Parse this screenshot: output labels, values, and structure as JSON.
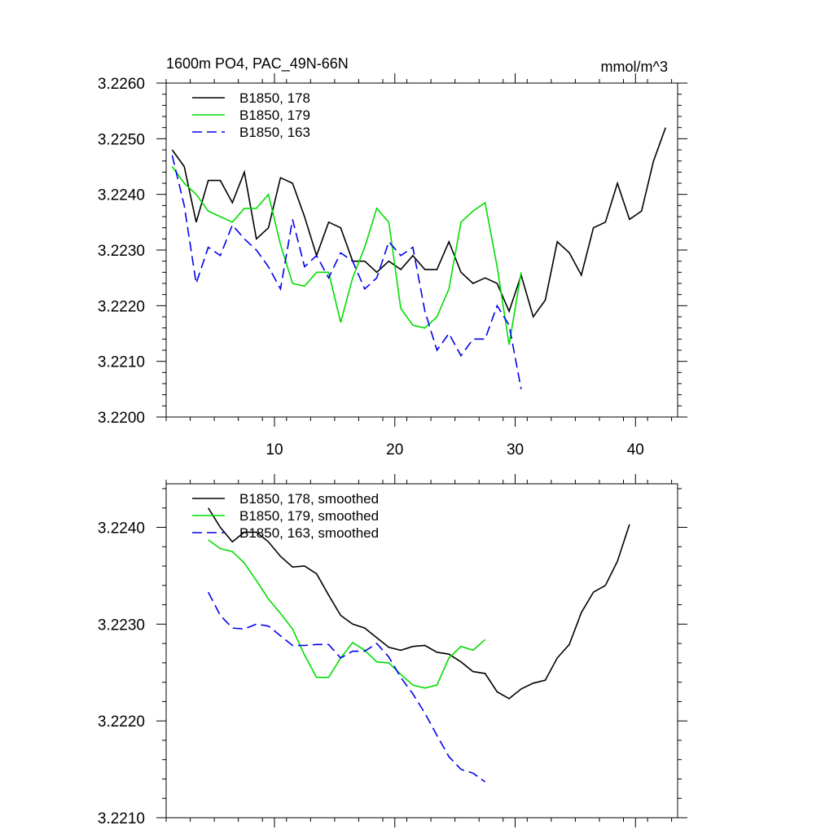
{
  "chart_data": [
    {
      "type": "line",
      "title": "1600m PO4, PAC_49N-66N",
      "units": "mmol/m^3",
      "xlim": [
        1,
        43.5
      ],
      "ylim": [
        3.22,
        3.226
      ],
      "x_ticks": [
        10,
        20,
        30,
        40
      ],
      "x_tick_labels": [
        "10",
        "20",
        "30",
        "40"
      ],
      "y_ticks": [
        3.22,
        3.221,
        3.222,
        3.223,
        3.224,
        3.225,
        3.226
      ],
      "y_tick_labels": [
        "3.2200",
        "3.2210",
        "3.2220",
        "3.2230",
        "3.2240",
        "3.2250",
        "3.2260"
      ],
      "legend_position": "top-left",
      "series": [
        {
          "name": "B1850, 178",
          "color": "#000000",
          "dash": "solid",
          "x": [
            1.5,
            2.5,
            3.5,
            4.5,
            5.5,
            6.5,
            7.5,
            8.5,
            9.5,
            10.5,
            11.5,
            12.5,
            13.5,
            14.5,
            15.5,
            16.5,
            17.5,
            18.5,
            19.5,
            20.5,
            21.5,
            22.5,
            23.5,
            24.5,
            25.5,
            26.5,
            27.5,
            28.5,
            29.5,
            30.5,
            31.5,
            32.5,
            33.5,
            34.5,
            35.5,
            36.5,
            37.5,
            38.5,
            39.5,
            40.5,
            41.5,
            42.5
          ],
          "values": [
            3.2248,
            3.2245,
            3.2235,
            3.22425,
            3.22425,
            3.22385,
            3.2244,
            3.2232,
            3.2234,
            3.2243,
            3.2242,
            3.2236,
            3.2229,
            3.2235,
            3.2234,
            3.2228,
            3.2228,
            3.2226,
            3.2228,
            3.22265,
            3.2229,
            3.22265,
            3.22265,
            3.22315,
            3.2226,
            3.2224,
            3.2225,
            3.2224,
            3.2219,
            3.22255,
            3.2218,
            3.2221,
            3.22315,
            3.22295,
            3.22255,
            3.2234,
            3.2235,
            3.2242,
            3.22355,
            3.2237,
            3.2246,
            3.2252
          ]
        },
        {
          "name": "B1850, 179",
          "color": "#00dd00",
          "dash": "solid",
          "x": [
            1.5,
            2.5,
            3.5,
            4.5,
            5.5,
            6.5,
            7.5,
            8.5,
            9.5,
            10.5,
            11.5,
            12.5,
            13.5,
            14.5,
            15.5,
            16.5,
            17.5,
            18.5,
            19.5,
            20.5,
            21.5,
            22.5,
            23.5,
            24.5,
            25.5,
            26.5,
            27.5,
            28.5,
            29.5,
            30.5
          ],
          "values": [
            3.2245,
            3.2242,
            3.224,
            3.2237,
            3.2236,
            3.2235,
            3.22375,
            3.22375,
            3.224,
            3.2231,
            3.2224,
            3.22235,
            3.2226,
            3.2226,
            3.2217,
            3.2225,
            3.22305,
            3.22375,
            3.2235,
            3.22195,
            3.22165,
            3.2216,
            3.2218,
            3.2223,
            3.2235,
            3.2237,
            3.22385,
            3.2227,
            3.2213,
            3.2226
          ]
        },
        {
          "name": "B1850, 163",
          "color": "#0000ee",
          "dash": "dashed",
          "x": [
            1.5,
            2.5,
            3.5,
            4.5,
            5.5,
            6.5,
            7.5,
            8.5,
            9.5,
            10.5,
            11.5,
            12.5,
            13.5,
            14.5,
            15.5,
            16.5,
            17.5,
            18.5,
            19.5,
            20.5,
            21.5,
            22.5,
            23.5,
            24.5,
            25.5,
            26.5,
            27.5,
            28.5,
            29.5,
            30.5
          ],
          "values": [
            3.2247,
            3.2238,
            3.2224,
            3.22305,
            3.2229,
            3.22345,
            3.2232,
            3.223,
            3.2227,
            3.2223,
            3.22355,
            3.2227,
            3.2229,
            3.2225,
            3.22295,
            3.2228,
            3.2223,
            3.2225,
            3.22315,
            3.2229,
            3.22305,
            3.2219,
            3.2212,
            3.2215,
            3.2211,
            3.2214,
            3.2214,
            3.222,
            3.22165,
            3.2205
          ]
        }
      ]
    },
    {
      "type": "line",
      "title": "",
      "xlim": [
        1,
        43.5
      ],
      "ylim": [
        3.221,
        3.22445
      ],
      "x_ticks": [
        10,
        20,
        30,
        40
      ],
      "y_ticks": [
        3.221,
        3.222,
        3.223,
        3.224
      ],
      "y_tick_labels": [
        "3.2210",
        "3.2220",
        "3.2230",
        "3.2240"
      ],
      "legend_position": "top-left",
      "series": [
        {
          "name": "B1850, 178, smoothed",
          "color": "#000000",
          "dash": "solid",
          "x": [
            4.5,
            5.5,
            6.5,
            7.5,
            8.5,
            9.5,
            10.5,
            11.5,
            12.5,
            13.5,
            14.5,
            15.5,
            16.5,
            17.5,
            18.5,
            19.5,
            20.5,
            21.5,
            22.5,
            23.5,
            24.5,
            25.5,
            26.5,
            27.5,
            28.5,
            29.5,
            30.5,
            31.5,
            32.5,
            33.5,
            34.5,
            35.5,
            36.5,
            37.5,
            38.5,
            39.5
          ],
          "values": [
            3.2242,
            3.224,
            3.22385,
            3.22395,
            3.22395,
            3.22385,
            3.2237,
            3.22359,
            3.2236,
            3.22352,
            3.2233,
            3.22309,
            3.223,
            3.22296,
            3.22286,
            3.22276,
            3.22273,
            3.22277,
            3.22278,
            3.22271,
            3.22269,
            3.22261,
            3.22251,
            3.22249,
            3.2223,
            3.22223,
            3.22233,
            3.22239,
            3.22242,
            3.22265,
            3.22279,
            3.22312,
            3.22333,
            3.2234,
            3.22365,
            3.22403
          ]
        },
        {
          "name": "B1850, 179, smoothed",
          "color": "#00dd00",
          "dash": "solid",
          "x": [
            4.5,
            5.5,
            6.5,
            7.5,
            8.5,
            9.5,
            10.5,
            11.5,
            12.5,
            13.5,
            14.5,
            15.5,
            16.5,
            17.5,
            18.5,
            19.5,
            20.5,
            21.5,
            22.5,
            23.5,
            24.5,
            25.5,
            26.5,
            27.5
          ],
          "values": [
            3.22387,
            3.22378,
            3.22375,
            3.22363,
            3.22345,
            3.22326,
            3.22311,
            3.22295,
            3.22268,
            3.22245,
            3.22245,
            3.22265,
            3.22281,
            3.22273,
            3.22261,
            3.2226,
            3.22248,
            3.22237,
            3.22234,
            3.22237,
            3.22265,
            3.22277,
            3.22273,
            3.22284
          ]
        },
        {
          "name": "B1850, 163, smoothed",
          "color": "#0000ee",
          "dash": "dashed",
          "x": [
            4.5,
            5.5,
            6.5,
            7.5,
            8.5,
            9.5,
            10.5,
            11.5,
            12.5,
            13.5,
            14.5,
            15.5,
            16.5,
            17.5,
            18.5,
            19.5,
            20.5,
            21.5,
            22.5,
            23.5,
            24.5,
            25.5,
            26.5,
            27.5
          ],
          "values": [
            3.22333,
            3.22309,
            3.22296,
            3.22295,
            3.223,
            3.22298,
            3.22288,
            3.22278,
            3.22278,
            3.22279,
            3.22279,
            3.22265,
            3.22272,
            3.22272,
            3.2228,
            3.22266,
            3.22245,
            3.22228,
            3.22208,
            3.22185,
            3.22163,
            3.2215,
            3.22146,
            3.22137
          ]
        }
      ]
    }
  ]
}
